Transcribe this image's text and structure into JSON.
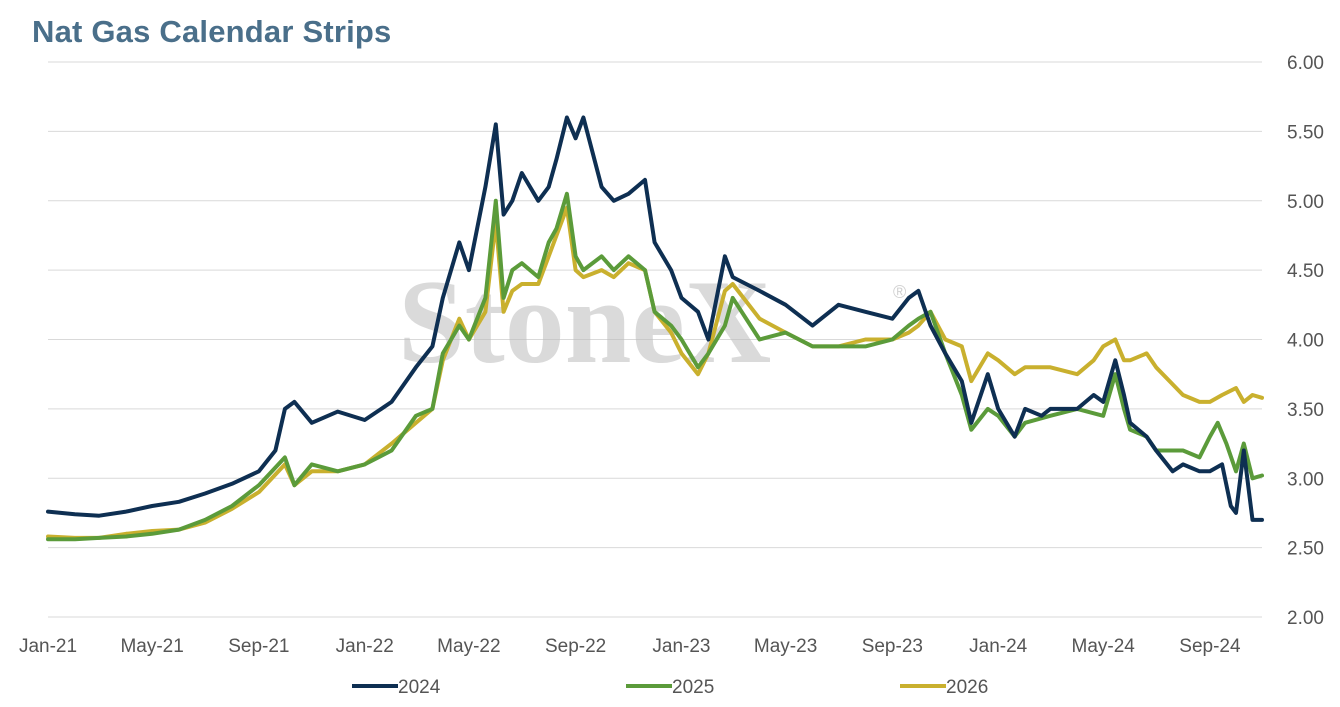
{
  "chart_data": {
    "type": "line",
    "title": "Nat Gas Calendar Strips",
    "watermark": "StoneX",
    "watermark_mark": "®",
    "xlabel": "",
    "ylabel": "",
    "x_range": [
      "2021-01-01",
      "2024-10-31"
    ],
    "x_tick_labels": [
      "Jan-21",
      "May-21",
      "Sep-21",
      "Jan-22",
      "May-22",
      "Sep-22",
      "Jan-23",
      "May-23",
      "Sep-23",
      "Jan-24",
      "May-24",
      "Sep-24"
    ],
    "x_tick_dates": [
      "2021-01-01",
      "2021-05-01",
      "2021-09-01",
      "2022-01-01",
      "2022-05-01",
      "2022-09-01",
      "2023-01-01",
      "2023-05-01",
      "2023-09-01",
      "2024-01-01",
      "2024-05-01",
      "2024-09-01"
    ],
    "y_axis_side": "right",
    "ylim": [
      2.0,
      6.0
    ],
    "y_ticks": [
      "2.00",
      "2.50",
      "3.00",
      "3.50",
      "4.00",
      "4.50",
      "5.00",
      "5.50",
      "6.00"
    ],
    "grid": "horizontal",
    "legend_position": "bottom",
    "colors": {
      "2024": "#0e2f52",
      "2025": "#5b9b3a",
      "2026": "#c9b02e"
    },
    "series": [
      {
        "name": "2024",
        "color": "#0e2f52",
        "x": [
          "2021-01-01",
          "2021-02-01",
          "2021-03-01",
          "2021-04-01",
          "2021-05-01",
          "2021-06-01",
          "2021-07-01",
          "2021-08-01",
          "2021-09-01",
          "2021-09-20",
          "2021-10-01",
          "2021-10-12",
          "2021-11-01",
          "2021-12-01",
          "2022-01-01",
          "2022-02-01",
          "2022-03-01",
          "2022-03-20",
          "2022-04-01",
          "2022-04-20",
          "2022-05-01",
          "2022-05-20",
          "2022-06-01",
          "2022-06-10",
          "2022-06-20",
          "2022-07-01",
          "2022-07-20",
          "2022-08-01",
          "2022-08-10",
          "2022-08-22",
          "2022-09-01",
          "2022-09-10",
          "2022-10-01",
          "2022-10-15",
          "2022-11-01",
          "2022-11-20",
          "2022-12-01",
          "2022-12-20",
          "2023-01-01",
          "2023-01-20",
          "2023-02-01",
          "2023-02-20",
          "2023-03-01",
          "2023-04-01",
          "2023-05-01",
          "2023-06-01",
          "2023-07-01",
          "2023-08-01",
          "2023-09-01",
          "2023-09-20",
          "2023-10-01",
          "2023-10-15",
          "2023-11-01",
          "2023-11-20",
          "2023-12-01",
          "2023-12-20",
          "2024-01-01",
          "2024-01-20",
          "2024-02-01",
          "2024-02-20",
          "2024-03-01",
          "2024-04-01",
          "2024-04-20",
          "2024-05-01",
          "2024-05-15",
          "2024-05-25",
          "2024-06-01",
          "2024-06-20",
          "2024-07-01",
          "2024-07-20",
          "2024-08-01",
          "2024-08-20",
          "2024-09-01",
          "2024-09-15",
          "2024-09-25",
          "2024-10-01",
          "2024-10-10",
          "2024-10-20",
          "2024-10-31"
        ],
        "values": [
          2.76,
          2.74,
          2.73,
          2.76,
          2.8,
          2.83,
          2.89,
          2.96,
          3.05,
          3.2,
          3.5,
          3.55,
          3.4,
          3.48,
          3.42,
          3.55,
          3.8,
          3.95,
          4.3,
          4.7,
          4.5,
          5.1,
          5.55,
          4.9,
          5.0,
          5.2,
          5.0,
          5.1,
          5.3,
          5.6,
          5.45,
          5.6,
          5.1,
          5.0,
          5.05,
          5.15,
          4.7,
          4.5,
          4.3,
          4.2,
          4.0,
          4.6,
          4.45,
          4.35,
          4.25,
          4.1,
          4.25,
          4.2,
          4.15,
          4.3,
          4.35,
          4.1,
          3.9,
          3.7,
          3.4,
          3.75,
          3.5,
          3.3,
          3.5,
          3.45,
          3.5,
          3.5,
          3.6,
          3.55,
          3.85,
          3.6,
          3.4,
          3.3,
          3.2,
          3.05,
          3.1,
          3.05,
          3.05,
          3.1,
          2.8,
          2.75,
          3.2,
          2.7,
          2.7
        ]
      },
      {
        "name": "2025",
        "color": "#5b9b3a",
        "x": [
          "2021-01-01",
          "2021-02-01",
          "2021-03-01",
          "2021-04-01",
          "2021-05-01",
          "2021-06-01",
          "2021-07-01",
          "2021-08-01",
          "2021-09-01",
          "2021-10-01",
          "2021-10-12",
          "2021-11-01",
          "2021-12-01",
          "2022-01-01",
          "2022-02-01",
          "2022-03-01",
          "2022-03-20",
          "2022-04-01",
          "2022-04-20",
          "2022-05-01",
          "2022-05-20",
          "2022-06-01",
          "2022-06-10",
          "2022-06-20",
          "2022-07-01",
          "2022-07-20",
          "2022-08-01",
          "2022-08-10",
          "2022-08-22",
          "2022-09-01",
          "2022-09-10",
          "2022-10-01",
          "2022-10-15",
          "2022-11-01",
          "2022-11-20",
          "2022-12-01",
          "2022-12-20",
          "2023-01-01",
          "2023-01-20",
          "2023-02-01",
          "2023-02-20",
          "2023-03-01",
          "2023-04-01",
          "2023-05-01",
          "2023-06-01",
          "2023-07-01",
          "2023-08-01",
          "2023-09-01",
          "2023-09-20",
          "2023-10-01",
          "2023-10-15",
          "2023-11-01",
          "2023-11-20",
          "2023-12-01",
          "2023-12-20",
          "2024-01-01",
          "2024-01-20",
          "2024-02-01",
          "2024-03-01",
          "2024-04-01",
          "2024-05-01",
          "2024-05-15",
          "2024-05-25",
          "2024-06-01",
          "2024-06-20",
          "2024-07-01",
          "2024-08-01",
          "2024-08-20",
          "2024-09-01",
          "2024-09-10",
          "2024-09-20",
          "2024-10-01",
          "2024-10-10",
          "2024-10-20",
          "2024-10-31"
        ],
        "values": [
          2.56,
          2.56,
          2.57,
          2.58,
          2.6,
          2.63,
          2.7,
          2.8,
          2.95,
          3.15,
          2.95,
          3.1,
          3.05,
          3.1,
          3.2,
          3.45,
          3.5,
          3.9,
          4.1,
          4.0,
          4.3,
          5.0,
          4.3,
          4.5,
          4.55,
          4.45,
          4.7,
          4.8,
          5.05,
          4.6,
          4.5,
          4.6,
          4.5,
          4.6,
          4.5,
          4.2,
          4.1,
          4.0,
          3.8,
          3.9,
          4.1,
          4.3,
          4.0,
          4.05,
          3.95,
          3.95,
          3.95,
          4.0,
          4.1,
          4.15,
          4.2,
          3.9,
          3.6,
          3.35,
          3.5,
          3.45,
          3.3,
          3.4,
          3.45,
          3.5,
          3.45,
          3.75,
          3.5,
          3.35,
          3.3,
          3.2,
          3.2,
          3.15,
          3.3,
          3.4,
          3.25,
          3.05,
          3.25,
          3.0,
          3.02
        ]
      },
      {
        "name": "2026",
        "color": "#c9b02e",
        "x": [
          "2021-01-01",
          "2021-02-01",
          "2021-03-01",
          "2021-04-01",
          "2021-05-01",
          "2021-06-01",
          "2021-07-01",
          "2021-08-01",
          "2021-09-01",
          "2021-10-01",
          "2021-10-12",
          "2021-11-01",
          "2021-12-01",
          "2022-01-01",
          "2022-02-01",
          "2022-03-01",
          "2022-03-20",
          "2022-04-01",
          "2022-04-20",
          "2022-05-01",
          "2022-05-20",
          "2022-06-01",
          "2022-06-10",
          "2022-06-20",
          "2022-07-01",
          "2022-07-20",
          "2022-08-01",
          "2022-08-10",
          "2022-08-22",
          "2022-09-01",
          "2022-09-10",
          "2022-10-01",
          "2022-10-15",
          "2022-11-01",
          "2022-11-20",
          "2022-12-01",
          "2022-12-20",
          "2023-01-01",
          "2023-01-20",
          "2023-02-01",
          "2023-02-20",
          "2023-03-01",
          "2023-04-01",
          "2023-05-01",
          "2023-06-01",
          "2023-07-01",
          "2023-08-01",
          "2023-09-01",
          "2023-09-20",
          "2023-10-01",
          "2023-10-15",
          "2023-11-01",
          "2023-11-20",
          "2023-12-01",
          "2023-12-20",
          "2024-01-01",
          "2024-01-20",
          "2024-02-01",
          "2024-03-01",
          "2024-04-01",
          "2024-04-20",
          "2024-05-01",
          "2024-05-15",
          "2024-05-25",
          "2024-06-01",
          "2024-06-20",
          "2024-07-01",
          "2024-08-01",
          "2024-08-20",
          "2024-09-01",
          "2024-09-15",
          "2024-10-01",
          "2024-10-10",
          "2024-10-20",
          "2024-10-31"
        ],
        "values": [
          2.58,
          2.57,
          2.57,
          2.6,
          2.62,
          2.63,
          2.68,
          2.78,
          2.9,
          3.1,
          2.95,
          3.05,
          3.05,
          3.1,
          3.25,
          3.4,
          3.5,
          3.85,
          4.15,
          4.0,
          4.2,
          4.85,
          4.2,
          4.35,
          4.4,
          4.4,
          4.6,
          4.75,
          4.95,
          4.5,
          4.45,
          4.5,
          4.45,
          4.55,
          4.5,
          4.2,
          4.05,
          3.9,
          3.75,
          3.9,
          4.35,
          4.4,
          4.15,
          4.05,
          3.95,
          3.95,
          4.0,
          4.0,
          4.05,
          4.1,
          4.2,
          4.0,
          3.95,
          3.7,
          3.9,
          3.85,
          3.75,
          3.8,
          3.8,
          3.75,
          3.85,
          3.95,
          4.0,
          3.85,
          3.85,
          3.9,
          3.8,
          3.6,
          3.55,
          3.55,
          3.6,
          3.65,
          3.55,
          3.6,
          3.58
        ]
      }
    ]
  }
}
